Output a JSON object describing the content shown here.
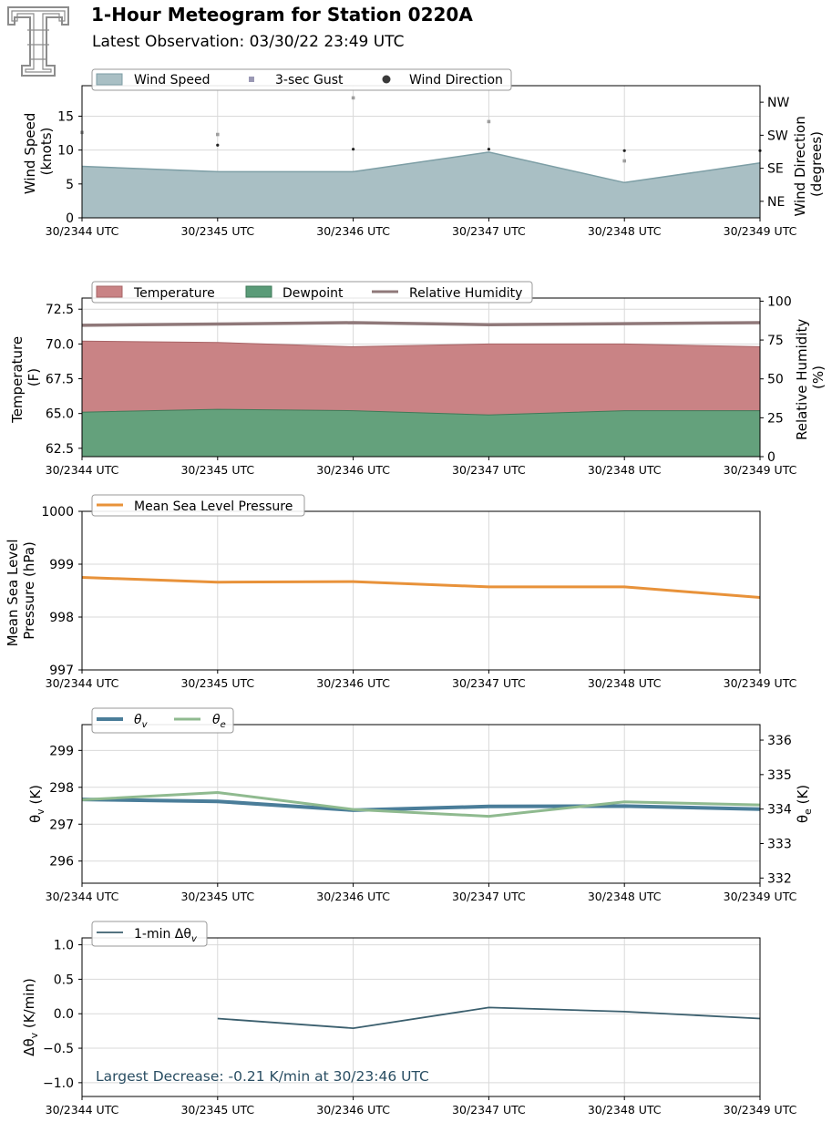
{
  "header": {
    "title": "1-Hour Meteogram for Station 0220A",
    "subtitle": "Latest Observation: 03/30/22 23:49 UTC"
  },
  "colors": {
    "wind_fill": "#a9bfc4",
    "wind_edge": "#7d9ea5",
    "gust": "#9e9e9e",
    "temperature_fill": "#c98385",
    "dewpoint_fill": "#64a17c",
    "rh_line": "#8f7879",
    "pressure_line": "#e8923a",
    "theta_v_line": "#4a7d99",
    "theta_e_line": "#8fba8f",
    "dtheta_line": "#3b5f6e",
    "annotation_text": "#2a4e63",
    "grid": "#d9d9d9"
  },
  "chart_data": [
    {
      "id": "wind",
      "type": "area",
      "x": [
        "30/2344 UTC",
        "30/2345 UTC",
        "30/2346 UTC",
        "30/2347 UTC",
        "30/2348 UTC",
        "30/2349 UTC"
      ],
      "ylabel": [
        "Wind Speed",
        "(knots)"
      ],
      "ylim": [
        0,
        19.5
      ],
      "yticks": [
        0,
        5,
        10,
        15
      ],
      "y2label": [
        "Wind Direction",
        "(degrees)"
      ],
      "y2lim": [
        0,
        360
      ],
      "y2ticks": [
        {
          "value": 45,
          "label": "NE"
        },
        {
          "value": 135,
          "label": "SE"
        },
        {
          "value": 225,
          "label": "SW"
        },
        {
          "value": 315,
          "label": "NW"
        }
      ],
      "legend": [
        "Wind Speed",
        "3-sec Gust",
        "Wind Direction"
      ],
      "legend_position": "top-left",
      "grid": true,
      "series": [
        {
          "name": "Wind Speed",
          "values": [
            7.6,
            6.8,
            6.8,
            9.7,
            5.2,
            8.1
          ]
        },
        {
          "name": "3-sec Gust",
          "values": [
            12.6,
            12.3,
            17.7,
            14.2,
            8.4,
            null
          ]
        },
        {
          "name": "Wind Direction",
          "values": [
            null,
            198,
            187,
            187,
            183,
            183
          ]
        }
      ]
    },
    {
      "id": "thermo",
      "type": "area",
      "x": [
        "30/2344 UTC",
        "30/2345 UTC",
        "30/2346 UTC",
        "30/2347 UTC",
        "30/2348 UTC",
        "30/2349 UTC"
      ],
      "ylabel": [
        "Temperature",
        "(F)"
      ],
      "ylim": [
        61.9,
        73.3
      ],
      "yticks": [
        62.5,
        65.0,
        67.5,
        70.0,
        72.5
      ],
      "y2label": [
        "Relative Humidity",
        "(%)"
      ],
      "y2lim": [
        0,
        102
      ],
      "y2ticks": [
        0,
        25,
        50,
        75,
        100
      ],
      "legend": [
        "Temperature",
        "Dewpoint",
        "Relative Humidity"
      ],
      "legend_position": "top-left",
      "grid": true,
      "series": [
        {
          "name": "Temperature",
          "values": [
            70.2,
            70.1,
            69.8,
            70.0,
            70.0,
            69.8
          ]
        },
        {
          "name": "Dewpoint",
          "values": [
            65.1,
            65.3,
            65.2,
            64.9,
            65.2,
            65.2
          ]
        },
        {
          "name": "Relative Humidity",
          "values": [
            84.5,
            85.3,
            86.2,
            84.9,
            85.5,
            86.2
          ]
        }
      ]
    },
    {
      "id": "pressure",
      "type": "line",
      "x": [
        "30/2344 UTC",
        "30/2345 UTC",
        "30/2346 UTC",
        "30/2347 UTC",
        "30/2348 UTC",
        "30/2349 UTC"
      ],
      "ylabel": [
        "Mean Sea Level",
        "Pressure (hPa)"
      ],
      "ylim": [
        997,
        1000
      ],
      "yticks": [
        997,
        998,
        999,
        1000
      ],
      "legend": [
        "Mean Sea Level Pressure"
      ],
      "legend_position": "top-left",
      "grid": true,
      "series": [
        {
          "name": "Mean Sea Level Pressure",
          "values": [
            998.75,
            998.66,
            998.67,
            998.57,
            998.57,
            998.37
          ]
        }
      ]
    },
    {
      "id": "theta",
      "type": "line",
      "x": [
        "30/2344 UTC",
        "30/2345 UTC",
        "30/2346 UTC",
        "30/2347 UTC",
        "30/2348 UTC",
        "30/2349 UTC"
      ],
      "ylabel": "θv (K)",
      "ylim": [
        295.4,
        299.7
      ],
      "yticks": [
        296,
        297,
        298,
        299
      ],
      "y2label": "θe (K)",
      "y2lim": [
        331.85,
        336.45
      ],
      "y2ticks": [
        332,
        333,
        334,
        335,
        336
      ],
      "legend": [
        "θv",
        "θe"
      ],
      "legend_position": "top-left",
      "grid": true,
      "series": [
        {
          "name": "θv",
          "values": [
            297.67,
            297.62,
            297.38,
            297.48,
            297.49,
            297.41
          ]
        },
        {
          "name": "θe",
          "values": [
            334.27,
            334.48,
            333.99,
            333.79,
            334.21,
            334.12
          ]
        }
      ]
    },
    {
      "id": "dtheta",
      "type": "line",
      "x": [
        "30/2344 UTC",
        "30/2345 UTC",
        "30/2346 UTC",
        "30/2347 UTC",
        "30/2348 UTC",
        "30/2349 UTC"
      ],
      "ylabel": "Δθv (K/min)",
      "ylim": [
        -1.2,
        1.1
      ],
      "yticks": [
        -1.0,
        -0.5,
        0.0,
        0.5,
        1.0
      ],
      "ytick_labels": [
        "−1.0",
        "−0.5",
        "0.0",
        "0.5",
        "1.0"
      ],
      "legend": [
        "1-min Δθv"
      ],
      "legend_position": "top-left",
      "grid": true,
      "annotation": "Largest Decrease: -0.21 K/min at 30/23:46 UTC",
      "series": [
        {
          "name": "1-min Δθv",
          "values": [
            null,
            -0.07,
            -0.21,
            0.09,
            0.03,
            -0.07
          ]
        }
      ]
    }
  ]
}
